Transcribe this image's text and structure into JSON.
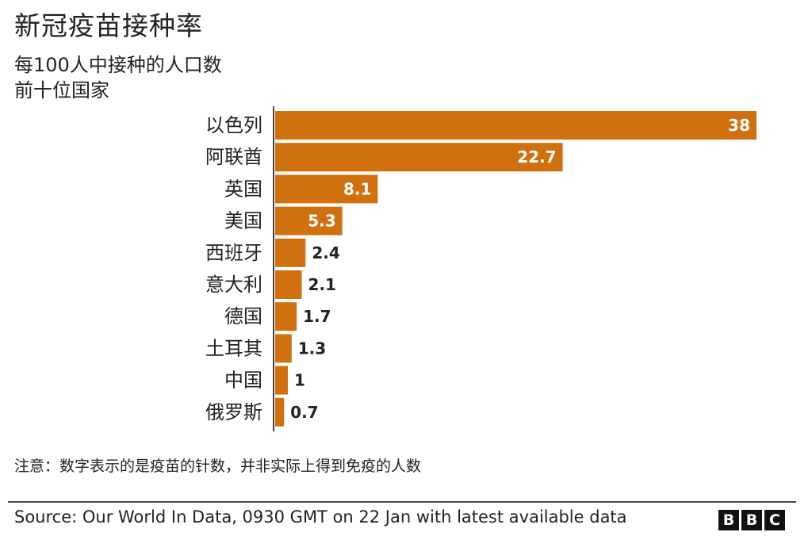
{
  "header": {
    "title": "新冠疫苗接种率",
    "subtitle_line1": "每100人中接种的人口数",
    "subtitle_line2": "前十位国家"
  },
  "chart_data": {
    "type": "bar",
    "orientation": "horizontal",
    "categories": [
      "以色列",
      "阿联酋",
      "英国",
      "美国",
      "西班牙",
      "意大利",
      "德国",
      "土耳其",
      "中国",
      "俄罗斯"
    ],
    "values": [
      38,
      22.7,
      8.1,
      5.3,
      2.4,
      2.1,
      1.7,
      1.3,
      1,
      0.7
    ],
    "value_labels": [
      "38",
      "22.7",
      "8.1",
      "5.3",
      "2.4",
      "2.1",
      "1.7",
      "1.3",
      "1",
      "0.7"
    ],
    "xlim": [
      0,
      38
    ],
    "bar_color": "#d1700f",
    "label_inside_color": "#ffffff",
    "label_outside_color": "#222222"
  },
  "footer": {
    "note": "注意：数字表示的是疫苗的针数，并非实际上得到免疫的人数",
    "source": "Source: Our World In Data, 0930 GMT on 22 Jan with latest available data",
    "logo_letters": [
      "B",
      "B",
      "C"
    ]
  }
}
